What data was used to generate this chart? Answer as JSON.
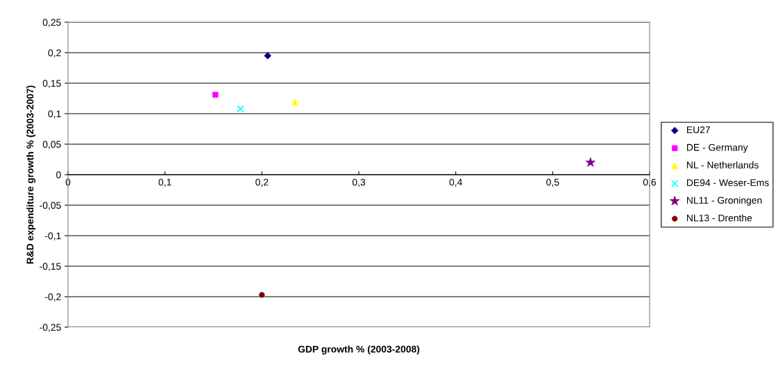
{
  "chart_data": {
    "type": "scatter",
    "xlabel": "GDP growth % (2003-2008)",
    "ylabel": "R&D expenditure growth % (2003-2007)",
    "xlim": [
      0,
      0.6
    ],
    "xticks": [
      {
        "value": 0,
        "label": "0"
      },
      {
        "value": 0.1,
        "label": "0,1"
      },
      {
        "value": 0.2,
        "label": "0,2"
      },
      {
        "value": 0.3,
        "label": "0,3"
      },
      {
        "value": 0.4,
        "label": "0,4"
      },
      {
        "value": 0.5,
        "label": "0,5"
      },
      {
        "value": 0.6,
        "label": "0,6"
      }
    ],
    "ylim": [
      -0.25,
      0.25
    ],
    "yticks": [
      {
        "value": -0.25,
        "label": "-0,25"
      },
      {
        "value": -0.2,
        "label": "-0,2"
      },
      {
        "value": -0.15,
        "label": "-0,15"
      },
      {
        "value": -0.1,
        "label": "-0,1"
      },
      {
        "value": -0.05,
        "label": "-0,05"
      },
      {
        "value": 0,
        "label": "0"
      },
      {
        "value": 0.05,
        "label": "0,05"
      },
      {
        "value": 0.1,
        "label": "0,1"
      },
      {
        "value": 0.15,
        "label": "0,15"
      },
      {
        "value": 0.2,
        "label": "0,2"
      },
      {
        "value": 0.25,
        "label": "0,25"
      }
    ],
    "grid": "y",
    "legend": "right",
    "series": [
      {
        "name": "EU27",
        "color": "#000080",
        "marker": "diamond",
        "x": [
          0.206
        ],
        "values": [
          0.195
        ]
      },
      {
        "name": "DE - Germany",
        "color": "#ff00ff",
        "marker": "square",
        "x": [
          0.152
        ],
        "values": [
          0.131
        ]
      },
      {
        "name": "NL - Netherlands",
        "color": "#ffff00",
        "marker": "triangle",
        "x": [
          0.234
        ],
        "values": [
          0.119
        ]
      },
      {
        "name": "DE94 - Weser-Ems",
        "color": "#00ffff",
        "marker": "cross",
        "x": [
          0.178
        ],
        "values": [
          0.108
        ]
      },
      {
        "name": "NL11 - Groningen",
        "color": "#800080",
        "marker": "star",
        "x": [
          0.539
        ],
        "values": [
          0.02
        ]
      },
      {
        "name": "NL13 - Drenthe",
        "color": "#800000",
        "marker": "circle",
        "x": [
          0.2
        ],
        "values": [
          -0.197
        ]
      }
    ]
  }
}
